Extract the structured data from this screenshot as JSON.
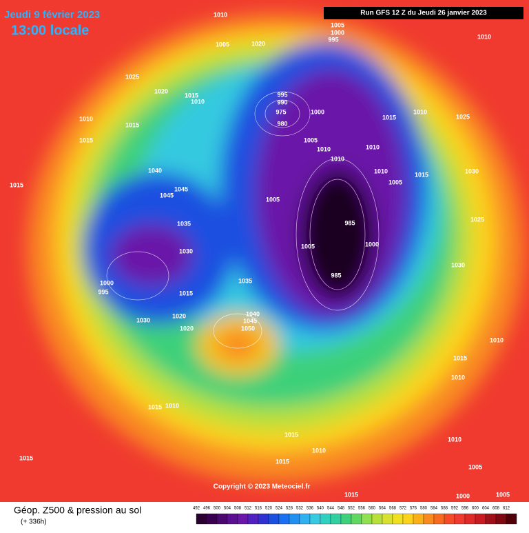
{
  "header": {
    "title": "Jeudi 9 février 2023",
    "subtitle": "13:00 locale",
    "run": "Run GFS 12 Z du Jeudi 26 janvier 2023"
  },
  "copyright": "Copyright © 2023 Meteociel.fr",
  "legend": {
    "title": "Géop. Z500 & pression au sol",
    "subtitle": "(+ 336h)",
    "scale": [
      492,
      496,
      500,
      504,
      508,
      512,
      516,
      520,
      524,
      528,
      532,
      536,
      540,
      544,
      548,
      552,
      556,
      560,
      564,
      568,
      572,
      576,
      580,
      584,
      588,
      592,
      596,
      600,
      604,
      608,
      612
    ]
  },
  "pressure_labels": [
    1010,
    1005,
    1020,
    1005,
    1000,
    995,
    1010,
    1025,
    1020,
    1015,
    1010,
    995,
    990,
    975,
    980,
    1000,
    1015,
    1010,
    1025,
    1010,
    1015,
    1015,
    1005,
    1010,
    1010,
    1010,
    1040,
    1010,
    1015,
    1030,
    1015,
    1045,
    1045,
    1005,
    1005,
    1035,
    985,
    1025,
    1030,
    1005,
    1000,
    985,
    1035,
    1000,
    995,
    1015,
    1020,
    1030,
    1040,
    1045,
    1050,
    1020,
    1030,
    1010,
    1015,
    1010,
    1015,
    1010,
    1015,
    1010,
    1015,
    1015,
    1010,
    1005,
    1015,
    1005,
    1000
  ]
}
